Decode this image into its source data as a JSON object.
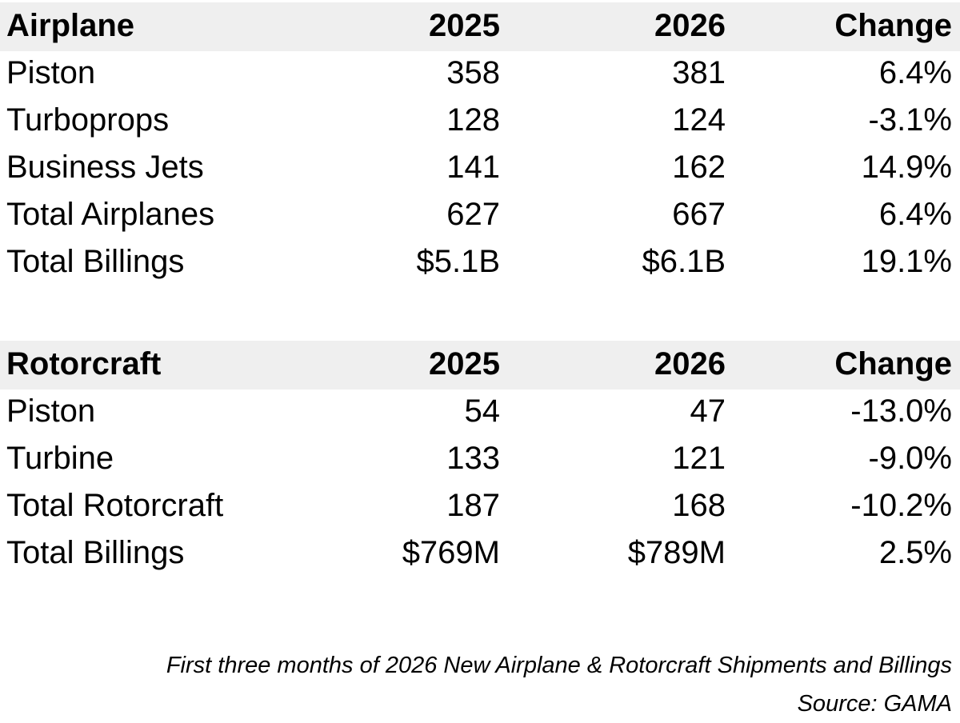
{
  "tables": [
    {
      "header": [
        "Airplane",
        "2025",
        "2026",
        "Change"
      ],
      "rows": [
        [
          "Piston",
          "358",
          "381",
          "6.4%"
        ],
        [
          "Turboprops",
          "128",
          "124",
          "-3.1%"
        ],
        [
          "Business Jets",
          "141",
          "162",
          "14.9%"
        ],
        [
          "Total Airplanes",
          "627",
          "667",
          "6.4%"
        ],
        [
          "Total Billings",
          "$5.1B",
          "$6.1B",
          "19.1%"
        ]
      ]
    },
    {
      "header": [
        "Rotorcraft",
        "2025",
        "2026",
        "Change"
      ],
      "rows": [
        [
          "Piston",
          "54",
          "47",
          "-13.0%"
        ],
        [
          "Turbine",
          "133",
          "121",
          "-9.0%"
        ],
        [
          "Total Rotorcraft",
          "187",
          "168",
          "-10.2%"
        ],
        [
          "Total Billings",
          "$769M",
          "$789M",
          "2.5%"
        ]
      ]
    }
  ],
  "footer": {
    "caption": "First three months of 2026 New Airplane & Rotorcraft Shipments and Billings",
    "source": "Source: GAMA"
  }
}
